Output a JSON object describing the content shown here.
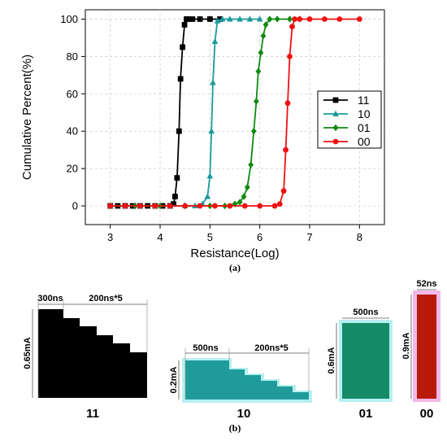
{
  "chart_data": [
    {
      "type": "line",
      "title": "",
      "xlabel": "Resistance(Log)",
      "ylabel": "Cumulative Percent(%)",
      "xlim": [
        2.5,
        8.5
      ],
      "ylim": [
        -10,
        105
      ],
      "xticks": [
        "3",
        "4",
        "5",
        "6",
        "7",
        "8"
      ],
      "yticks": [
        "0",
        "20",
        "40",
        "60",
        "80",
        "100"
      ],
      "grid": true,
      "legend": "right",
      "caption": "(a)",
      "series": [
        {
          "name": "11",
          "color": "#000000",
          "marker": "square",
          "points": [
            [
              3.0,
              0
            ],
            [
              3.15,
              0
            ],
            [
              3.3,
              0
            ],
            [
              3.45,
              0
            ],
            [
              3.6,
              0
            ],
            [
              3.75,
              0
            ],
            [
              3.9,
              0
            ],
            [
              4.05,
              0
            ],
            [
              4.2,
              0
            ],
            [
              4.27,
              1
            ],
            [
              4.3,
              5
            ],
            [
              4.34,
              15
            ],
            [
              4.38,
              40
            ],
            [
              4.41,
              68
            ],
            [
              4.45,
              85
            ],
            [
              4.49,
              97
            ],
            [
              4.53,
              100
            ],
            [
              4.57,
              100
            ],
            [
              4.65,
              100
            ],
            [
              4.8,
              100
            ],
            [
              5.0,
              100
            ],
            [
              5.2,
              100
            ]
          ]
        },
        {
          "name": "10",
          "color": "#1a9a9a",
          "marker": "triangle",
          "points": [
            [
              3.0,
              0
            ],
            [
              3.3,
              0
            ],
            [
              3.6,
              0
            ],
            [
              3.9,
              0
            ],
            [
              4.2,
              0
            ],
            [
              4.5,
              0
            ],
            [
              4.7,
              0
            ],
            [
              4.85,
              1
            ],
            [
              4.95,
              5
            ],
            [
              5.0,
              16
            ],
            [
              5.03,
              40
            ],
            [
              5.06,
              66
            ],
            [
              5.1,
              88
            ],
            [
              5.15,
              99
            ],
            [
              5.25,
              100
            ],
            [
              5.4,
              100
            ],
            [
              5.6,
              100
            ],
            [
              5.8,
              100
            ],
            [
              6.0,
              100
            ]
          ]
        },
        {
          "name": "01",
          "color": "#0f8a0f",
          "marker": "diamond",
          "points": [
            [
              3.0,
              0
            ],
            [
              3.5,
              0
            ],
            [
              4.0,
              0
            ],
            [
              4.5,
              0
            ],
            [
              5.0,
              0
            ],
            [
              5.3,
              0
            ],
            [
              5.5,
              1
            ],
            [
              5.6,
              2
            ],
            [
              5.68,
              5
            ],
            [
              5.75,
              10
            ],
            [
              5.82,
              22
            ],
            [
              5.88,
              40
            ],
            [
              5.93,
              56
            ],
            [
              5.97,
              72
            ],
            [
              6.02,
              82
            ],
            [
              6.07,
              91
            ],
            [
              6.12,
              97
            ],
            [
              6.2,
              100
            ],
            [
              6.35,
              100
            ],
            [
              6.6,
              100
            ],
            [
              6.8,
              100
            ]
          ]
        },
        {
          "name": "00",
          "color": "#ee1111",
          "marker": "circle",
          "points": [
            [
              3.0,
              0
            ],
            [
              3.3,
              0
            ],
            [
              3.6,
              0
            ],
            [
              3.9,
              0
            ],
            [
              4.2,
              0
            ],
            [
              4.5,
              0
            ],
            [
              4.8,
              0
            ],
            [
              5.1,
              0
            ],
            [
              5.4,
              0
            ],
            [
              5.7,
              0
            ],
            [
              6.0,
              0
            ],
            [
              6.3,
              0
            ],
            [
              6.4,
              1
            ],
            [
              6.48,
              8
            ],
            [
              6.52,
              30
            ],
            [
              6.56,
              55
            ],
            [
              6.6,
              80
            ],
            [
              6.65,
              96
            ],
            [
              6.7,
              100
            ],
            [
              6.8,
              100
            ],
            [
              7.0,
              100
            ],
            [
              7.3,
              100
            ],
            [
              7.6,
              100
            ],
            [
              8.0,
              100
            ]
          ]
        }
      ]
    }
  ],
  "pulses": {
    "caption": "(b)",
    "items": [
      {
        "label": "11",
        "width_label": "300ns",
        "steps_label": "200ns*5",
        "amp_label": "0.65mA",
        "color": "#000000",
        "glow": "",
        "shape": "staircase",
        "first_width_ns": 300,
        "step_width_ns": 200,
        "step_count": 5,
        "amplitude_ma": 0.65
      },
      {
        "label": "10",
        "width_label": "500ns",
        "steps_label": "200ns*5",
        "amp_label": "0.2mA",
        "color": "#1f9b9b",
        "glow": "#b6f0f0",
        "shape": "staircase",
        "first_width_ns": 500,
        "step_width_ns": 200,
        "step_count": 5,
        "amplitude_ma": 0.2
      },
      {
        "label": "01",
        "width_label": "500ns",
        "amp_label": "0.6mA",
        "color": "#158a66",
        "glow": "#b6f0f0",
        "shape": "rect",
        "first_width_ns": 500,
        "amplitude_ma": 0.6
      },
      {
        "label": "00",
        "width_label": "52ns",
        "amp_label": "0.9mA",
        "color": "#b81a0a",
        "glow": "#f4b8e8",
        "shape": "rect",
        "first_width_ns": 52,
        "amplitude_ma": 0.9
      }
    ]
  }
}
